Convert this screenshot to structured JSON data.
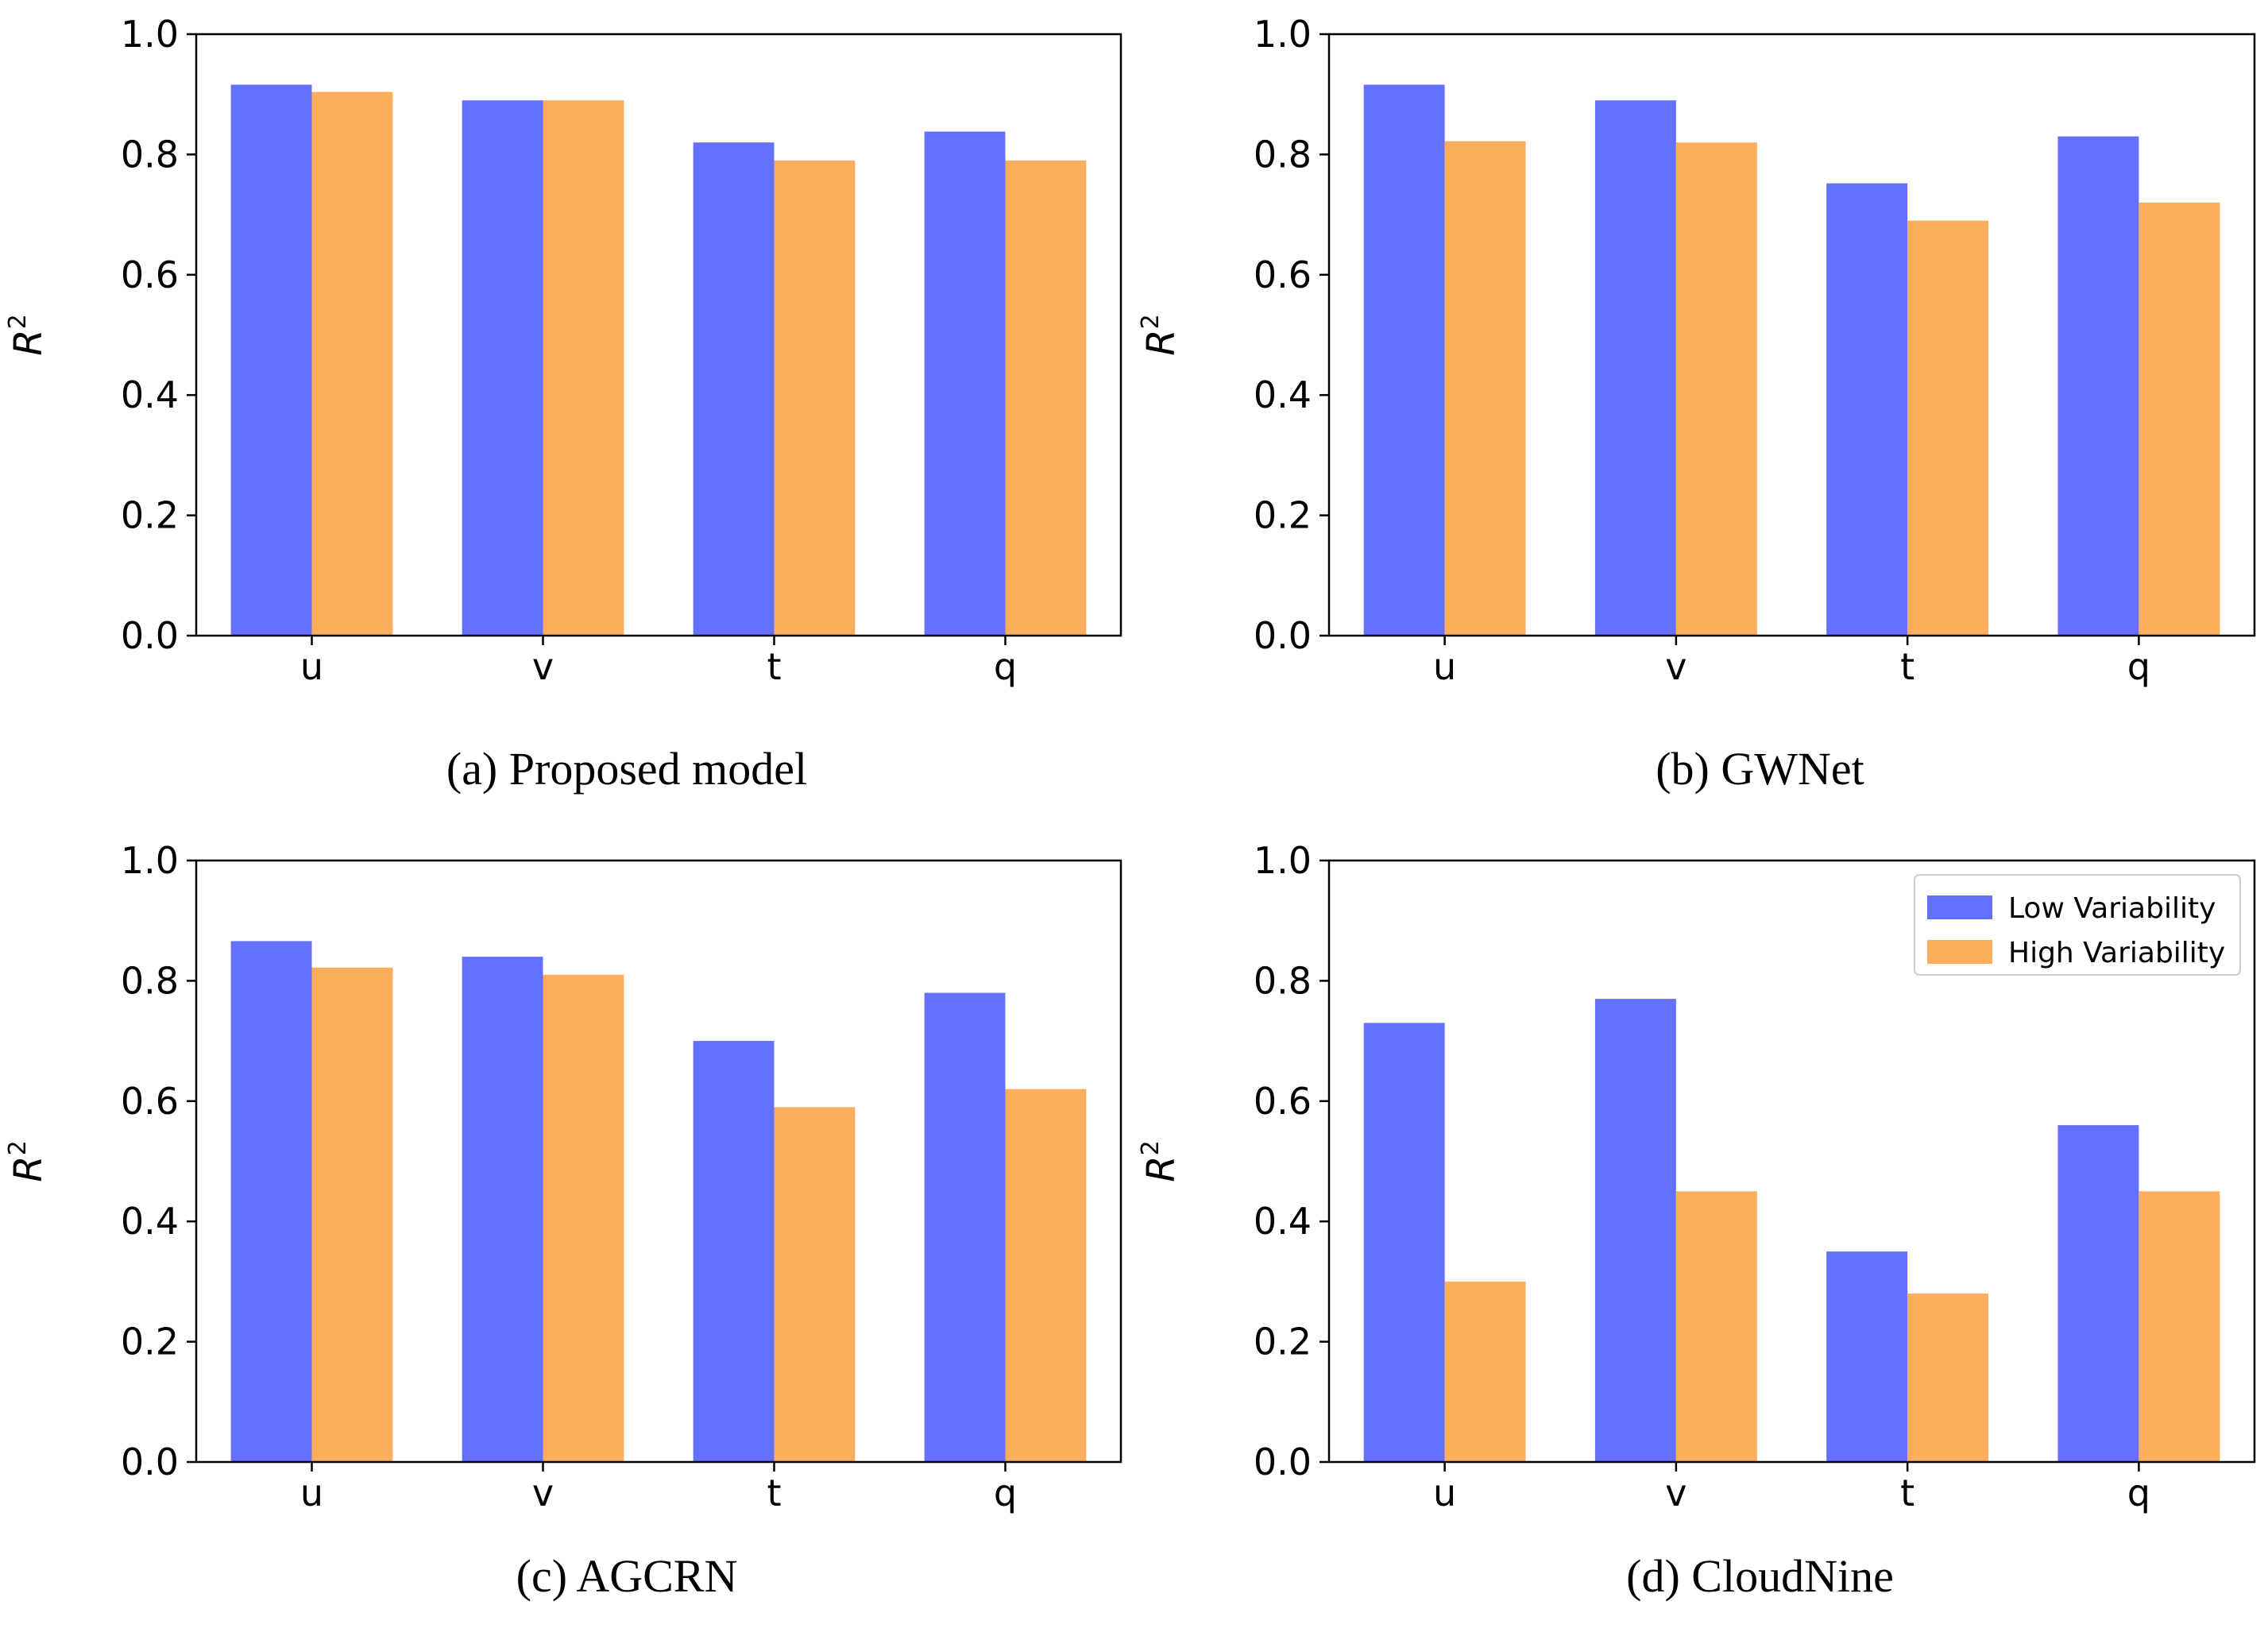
{
  "colors": {
    "low": "#6470fe",
    "high": "#fdae5c",
    "axis": "#000000"
  },
  "legend": {
    "placement": "top-right",
    "entries": [
      "Low Variability",
      "High Variability"
    ]
  },
  "chart_data": [
    {
      "type": "bar",
      "title": "",
      "caption": "(a) Proposed model",
      "xlabel": "",
      "ylabel": "R",
      "ylabel_sup": "2",
      "ylim": [
        0,
        1.0
      ],
      "yticks": [
        "0.0",
        "0.2",
        "0.4",
        "0.6",
        "0.8",
        "1.0"
      ],
      "categories": [
        "u",
        "v",
        "t",
        "q"
      ],
      "series": [
        {
          "name": "Low Variability",
          "values": [
            0.916,
            0.89,
            0.82,
            0.838
          ]
        },
        {
          "name": "High Variability",
          "values": [
            0.904,
            0.89,
            0.79,
            0.79
          ]
        }
      ],
      "show_legend": false
    },
    {
      "type": "bar",
      "title": "",
      "caption": "(b) GWNet",
      "xlabel": "",
      "ylabel": "R",
      "ylabel_sup": "2",
      "ylim": [
        0,
        1.0
      ],
      "yticks": [
        "0.0",
        "0.2",
        "0.4",
        "0.6",
        "0.8",
        "1.0"
      ],
      "categories": [
        "u",
        "v",
        "t",
        "q"
      ],
      "series": [
        {
          "name": "Low Variability",
          "values": [
            0.916,
            0.89,
            0.752,
            0.83
          ]
        },
        {
          "name": "High Variability",
          "values": [
            0.822,
            0.82,
            0.69,
            0.72
          ]
        }
      ],
      "show_legend": false
    },
    {
      "type": "bar",
      "title": "",
      "caption": "(c) AGCRN",
      "xlabel": "",
      "ylabel": "R",
      "ylabel_sup": "2",
      "ylim": [
        0,
        1.0
      ],
      "yticks": [
        "0.0",
        "0.2",
        "0.4",
        "0.6",
        "0.8",
        "1.0"
      ],
      "categories": [
        "u",
        "v",
        "t",
        "q"
      ],
      "series": [
        {
          "name": "Low Variability",
          "values": [
            0.866,
            0.84,
            0.7,
            0.78
          ]
        },
        {
          "name": "High Variability",
          "values": [
            0.822,
            0.81,
            0.59,
            0.62
          ]
        }
      ],
      "show_legend": false
    },
    {
      "type": "bar",
      "title": "",
      "caption": "(d) CloudNine",
      "xlabel": "",
      "ylabel": "R",
      "ylabel_sup": "2",
      "ylim": [
        0,
        1.0
      ],
      "yticks": [
        "0.0",
        "0.2",
        "0.4",
        "0.6",
        "0.8",
        "1.0"
      ],
      "categories": [
        "u",
        "v",
        "t",
        "q"
      ],
      "series": [
        {
          "name": "Low Variability",
          "values": [
            0.73,
            0.77,
            0.35,
            0.56
          ]
        },
        {
          "name": "High Variability",
          "values": [
            0.3,
            0.45,
            0.28,
            0.45
          ]
        }
      ],
      "show_legend": true
    }
  ]
}
